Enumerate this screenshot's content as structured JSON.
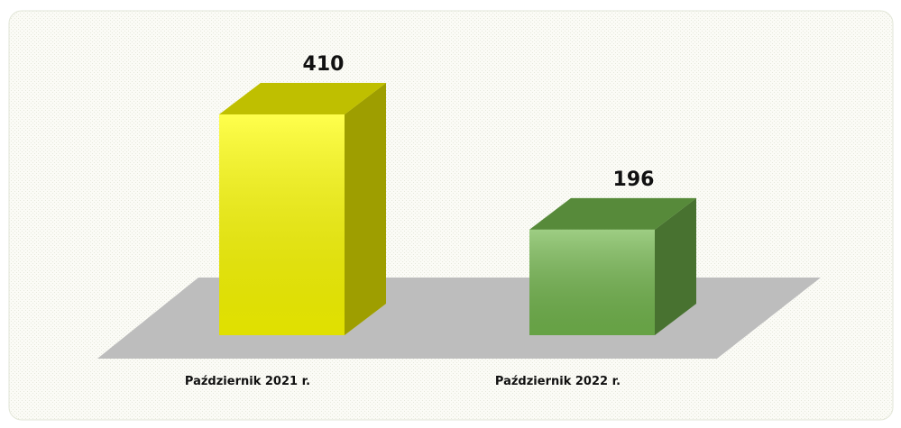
{
  "chart_data": {
    "type": "bar3d",
    "categories": [
      "Październik 2021 r.",
      "Październik 2022 r."
    ],
    "values": [
      410,
      196
    ],
    "colors": [
      "#ffff00",
      "#74b84e"
    ]
  }
}
